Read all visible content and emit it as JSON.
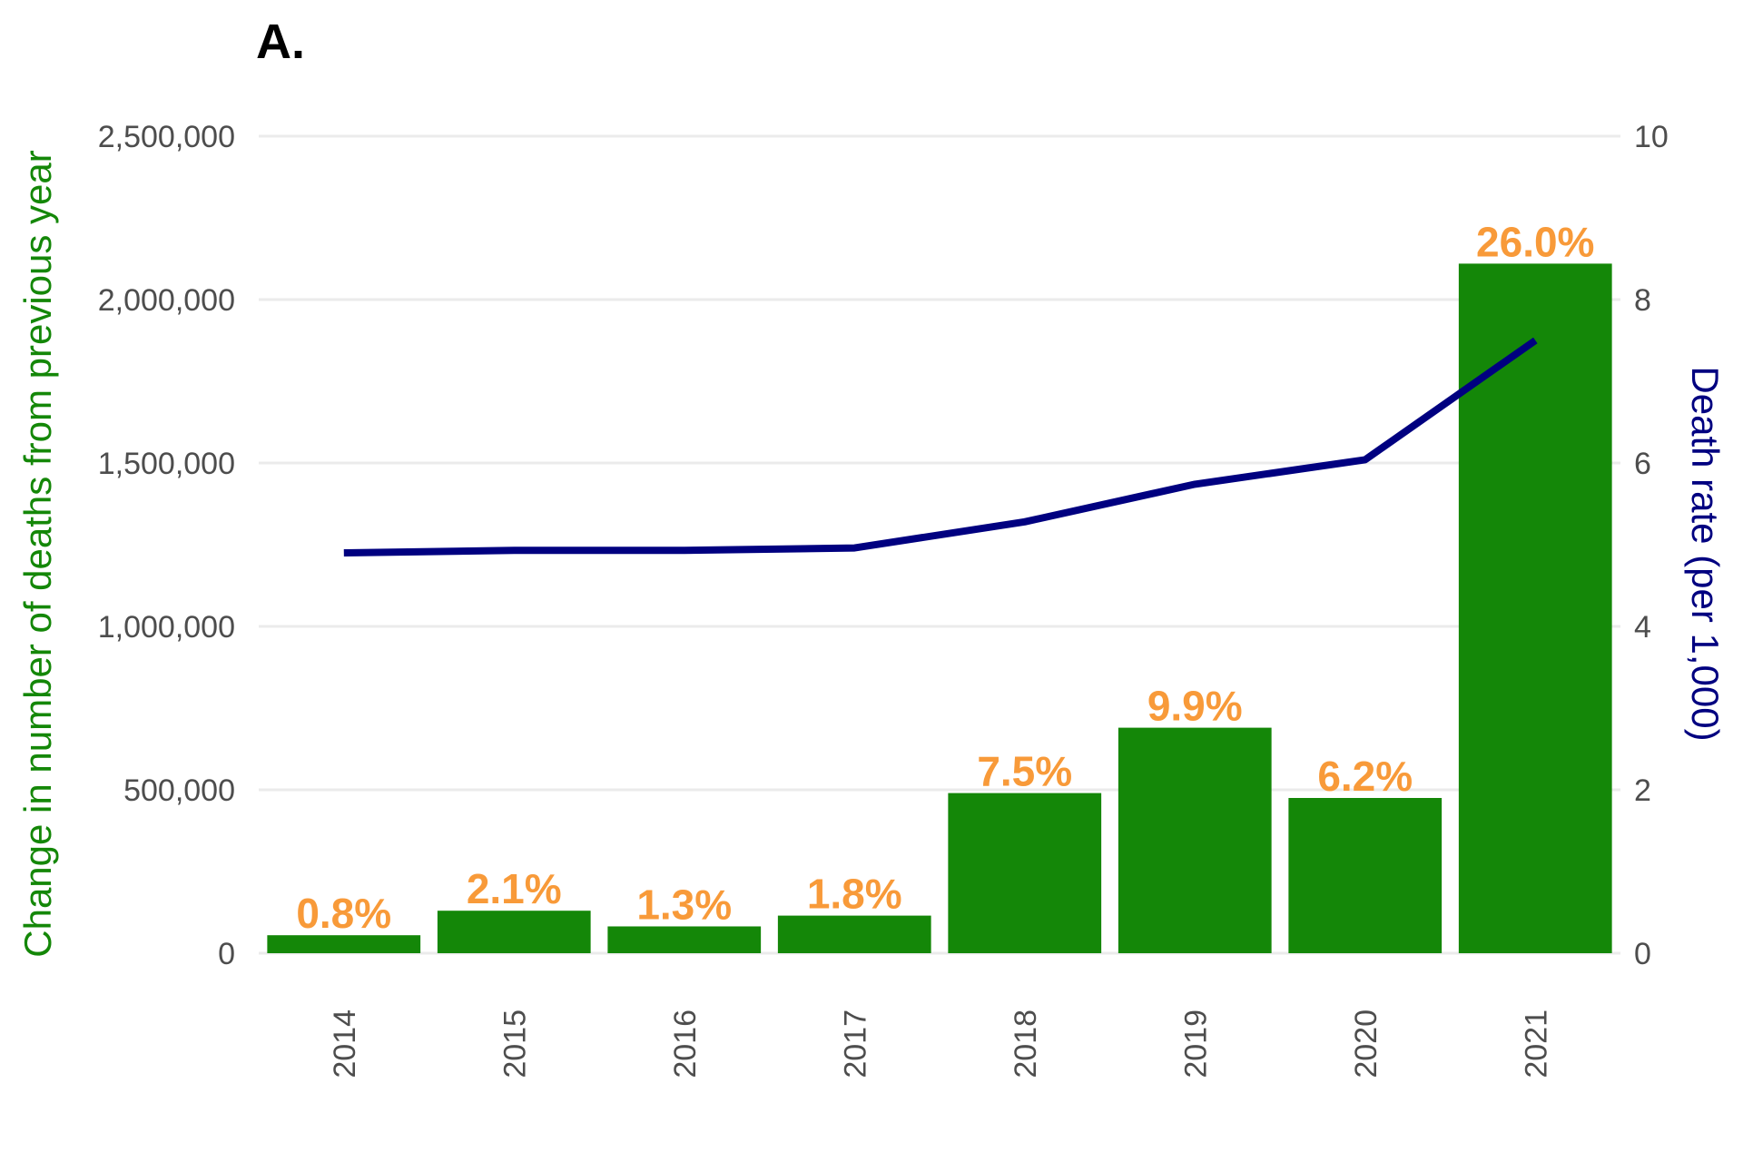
{
  "chart_data": {
    "type": "bar",
    "panel_label": "A.",
    "categories": [
      "2014",
      "2015",
      "2016",
      "2017",
      "2018",
      "2019",
      "2020",
      "2021"
    ],
    "series": [
      {
        "type": "bar",
        "axis": "left",
        "values": [
          55000,
          130000,
          82000,
          115000,
          490000,
          690000,
          475000,
          2110000
        ],
        "data_labels": [
          "0.8%",
          "2.1%",
          "1.3%",
          "1.8%",
          "7.5%",
          "9.9%",
          "6.2%",
          "26.0%"
        ]
      },
      {
        "type": "line",
        "axis": "right",
        "values": [
          4.9,
          4.93,
          4.93,
          4.96,
          5.28,
          5.74,
          6.04,
          7.5
        ]
      }
    ],
    "ylabel": "Change in number of deaths from previous year",
    "y2label": "Death rate (per 1,000)",
    "ylim": [
      0,
      2500000
    ],
    "y2lim": [
      0,
      10
    ],
    "yticks": [
      0,
      500000,
      1000000,
      1500000,
      2000000,
      2500000
    ],
    "ytick_labels": [
      "0",
      "500,000",
      "1,000,000",
      "1,500,000",
      "2,000,000",
      "2,500,000"
    ],
    "y2ticks": [
      0,
      2,
      4,
      6,
      8,
      10
    ],
    "y2tick_labels": [
      "0",
      "2",
      "4",
      "6",
      "8",
      "10"
    ],
    "grid": true,
    "legend": "none",
    "colors": {
      "bar": "#148708",
      "line": "#000080",
      "data_label": "#f89a39",
      "left_axis_title": "#148708",
      "right_axis_title": "#000080"
    }
  }
}
